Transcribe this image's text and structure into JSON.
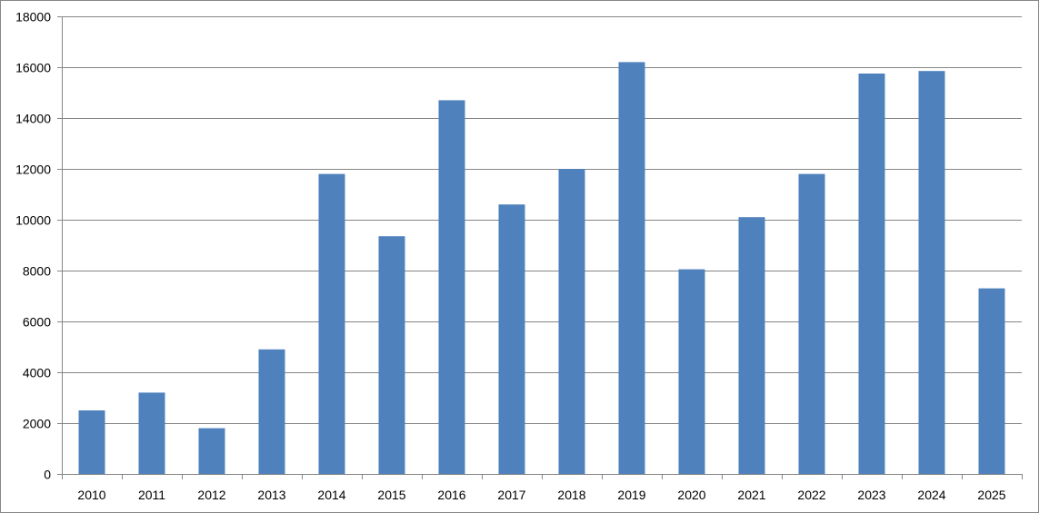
{
  "chart_data": {
    "type": "bar",
    "title": "",
    "xlabel": "",
    "ylabel": "",
    "categories": [
      "2010",
      "2011",
      "2012",
      "2013",
      "2014",
      "2015",
      "2016",
      "2017",
      "2018",
      "2019",
      "2020",
      "2021",
      "2022",
      "2023",
      "2024",
      "2025"
    ],
    "values": [
      2500,
      3200,
      1800,
      4900,
      11800,
      9350,
      14700,
      10600,
      12000,
      16200,
      8050,
      10100,
      11800,
      15750,
      15850,
      7300
    ],
    "ylim": [
      0,
      18000
    ],
    "yticks": [
      0,
      2000,
      4000,
      6000,
      8000,
      10000,
      12000,
      14000,
      16000,
      18000
    ],
    "ytick_labels": [
      "0",
      "2000",
      "4000",
      "6000",
      "8000",
      "10000",
      "12000",
      "14000",
      "16000",
      "18000"
    ],
    "grid": true,
    "legend": "none",
    "colors": {
      "bar": "#4F81BD",
      "grid": "#868686",
      "axis": "#868686"
    }
  }
}
